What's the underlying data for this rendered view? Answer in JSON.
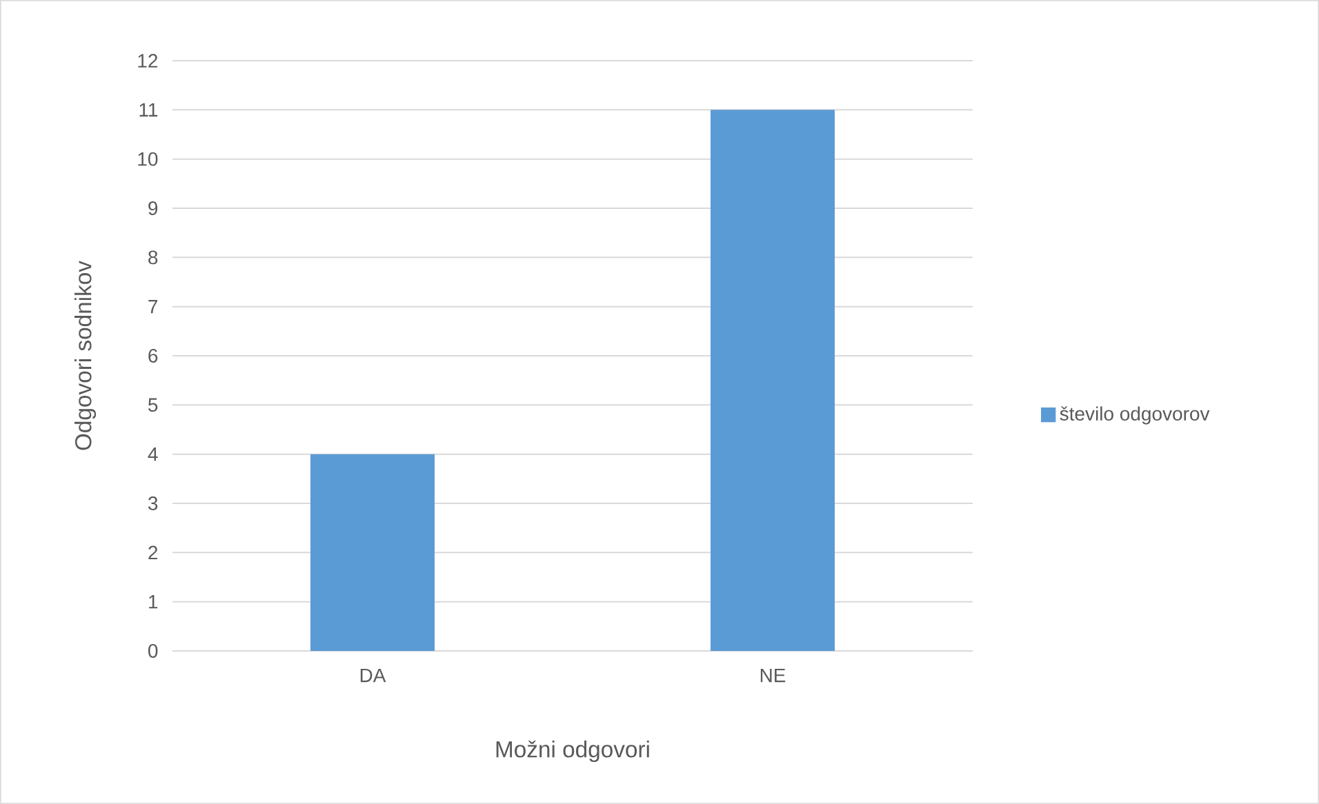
{
  "chart_data": {
    "type": "bar",
    "xlabel": "Možni odgovori",
    "ylabel": "Odgovori sodnikov",
    "categories": [
      "DA",
      "NE"
    ],
    "series": [
      {
        "name": "število odgovorov",
        "color": "#5b9bd5",
        "values": [
          4,
          11
        ]
      }
    ],
    "ylim": [
      0,
      12
    ],
    "yticks": [
      0,
      1,
      2,
      3,
      4,
      5,
      6,
      7,
      8,
      9,
      10,
      11,
      12
    ],
    "grid": "y",
    "legend": "right"
  }
}
